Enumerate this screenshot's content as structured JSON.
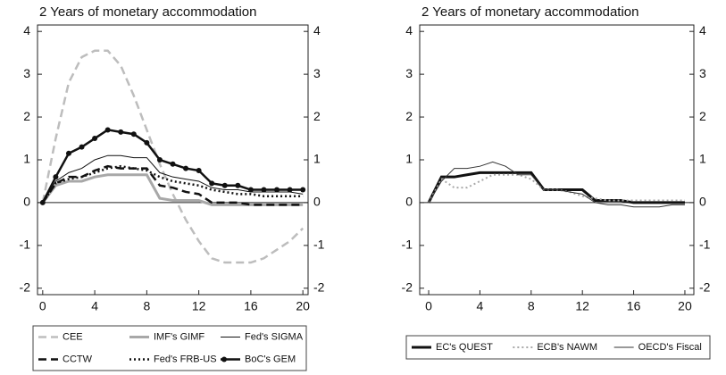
{
  "chart_data": [
    {
      "type": "line",
      "title": "2 Years of monetary accommodation",
      "x": [
        0,
        1,
        2,
        3,
        4,
        5,
        6,
        7,
        8,
        9,
        10,
        11,
        12,
        13,
        14,
        15,
        16,
        17,
        18,
        19,
        20
      ],
      "xlim": [
        -0.4,
        20.4
      ],
      "xticks": [
        0,
        4,
        8,
        12,
        16,
        20
      ],
      "ylim": [
        -2.15,
        4.15
      ],
      "yticks": [
        -2,
        -1,
        0,
        1,
        2,
        3,
        4
      ],
      "y2lim": [
        -2.15,
        4.15
      ],
      "y2ticks": [
        -2,
        -1,
        0,
        1,
        2,
        3,
        4
      ],
      "legend": "below",
      "legend_columns": 3,
      "series": [
        {
          "name": "CEE",
          "color": "#bdbdbd",
          "dash": "dashed",
          "width": 2.5,
          "values": [
            0,
            1.5,
            2.8,
            3.4,
            3.55,
            3.55,
            3.2,
            2.5,
            1.7,
            0.9,
            0.2,
            -0.4,
            -0.9,
            -1.3,
            -1.4,
            -1.4,
            -1.4,
            -1.3,
            -1.1,
            -0.9,
            -0.6
          ]
        },
        {
          "name": "IMF's GIMF",
          "color": "#a8a8a8",
          "dash": "solid",
          "width": 3,
          "values": [
            0,
            0.4,
            0.5,
            0.5,
            0.6,
            0.65,
            0.65,
            0.65,
            0.65,
            0.1,
            0.05,
            0.05,
            0.05,
            -0.05,
            -0.05,
            -0.05,
            -0.05,
            -0.05,
            -0.05,
            -0.05,
            -0.05
          ]
        },
        {
          "name": "Fed's SIGMA",
          "color": "#111111",
          "dash": "solid",
          "width": 1,
          "values": [
            0,
            0.5,
            0.7,
            0.8,
            1.0,
            1.1,
            1.1,
            1.05,
            1.05,
            0.7,
            0.6,
            0.55,
            0.5,
            0.35,
            0.3,
            0.3,
            0.25,
            0.25,
            0.25,
            0.25,
            0.2
          ]
        },
        {
          "name": "CCTW",
          "color": "#111111",
          "dash": "dashed",
          "width": 2.5,
          "values": [
            0,
            0.45,
            0.6,
            0.6,
            0.75,
            0.85,
            0.8,
            0.8,
            0.8,
            0.4,
            0.35,
            0.25,
            0.2,
            0,
            0,
            0,
            -0.05,
            -0.05,
            -0.05,
            -0.05,
            -0.05
          ]
        },
        {
          "name": "Fed's FRB-US",
          "color": "#111111",
          "dash": "dotted",
          "width": 2.5,
          "values": [
            0,
            0.45,
            0.55,
            0.6,
            0.7,
            0.8,
            0.85,
            0.8,
            0.75,
            0.6,
            0.5,
            0.45,
            0.4,
            0.3,
            0.25,
            0.2,
            0.2,
            0.15,
            0.15,
            0.15,
            0.15
          ]
        },
        {
          "name": "BoC's GEM",
          "color": "#111111",
          "dash": "solid",
          "width": 2.5,
          "marker": "dot",
          "values": [
            0,
            0.6,
            1.15,
            1.3,
            1.5,
            1.7,
            1.65,
            1.6,
            1.4,
            1.0,
            0.9,
            0.8,
            0.75,
            0.45,
            0.4,
            0.4,
            0.3,
            0.3,
            0.3,
            0.3,
            0.3
          ]
        }
      ]
    },
    {
      "type": "line",
      "title": "2 Years of monetary accommodation",
      "x": [
        0,
        1,
        2,
        3,
        4,
        5,
        6,
        7,
        8,
        9,
        10,
        11,
        12,
        13,
        14,
        15,
        16,
        17,
        18,
        19,
        20
      ],
      "xlim": [
        -0.7,
        20.7
      ],
      "xticks": [
        0,
        4,
        8,
        12,
        16,
        20
      ],
      "ylim": [
        -2.15,
        4.15
      ],
      "yticks": [
        -2,
        -1,
        0,
        1,
        2,
        3,
        4
      ],
      "y2lim": [
        -2.15,
        4.15
      ],
      "y2ticks": [
        -2,
        -1,
        0,
        1,
        2,
        3,
        4
      ],
      "legend": "below",
      "legend_columns": 3,
      "series": [
        {
          "name": "EC's QUEST",
          "color": "#111111",
          "dash": "solid",
          "width": 3,
          "values": [
            0,
            0.6,
            0.6,
            0.65,
            0.7,
            0.7,
            0.7,
            0.7,
            0.7,
            0.3,
            0.3,
            0.3,
            0.3,
            0.05,
            0.05,
            0.05,
            0,
            0,
            0,
            0,
            0
          ]
        },
        {
          "name": "ECB's NAWM",
          "color": "#a8a8a8",
          "dash": "dotted",
          "width": 2,
          "values": [
            0,
            0.55,
            0.35,
            0.35,
            0.5,
            0.65,
            0.65,
            0.65,
            0.55,
            0.3,
            0.3,
            0.25,
            0.15,
            0.1,
            0.05,
            0.05,
            0.05,
            0.05,
            0.05,
            0.05,
            0.05
          ]
        },
        {
          "name": "OECD's Fiscal",
          "color": "#333333",
          "dash": "solid",
          "width": 1,
          "values": [
            0,
            0.5,
            0.8,
            0.8,
            0.85,
            0.95,
            0.85,
            0.65,
            0.65,
            0.3,
            0.3,
            0.25,
            0.2,
            0,
            -0.05,
            -0.05,
            -0.1,
            -0.1,
            -0.1,
            -0.05,
            -0.05
          ]
        }
      ]
    }
  ]
}
